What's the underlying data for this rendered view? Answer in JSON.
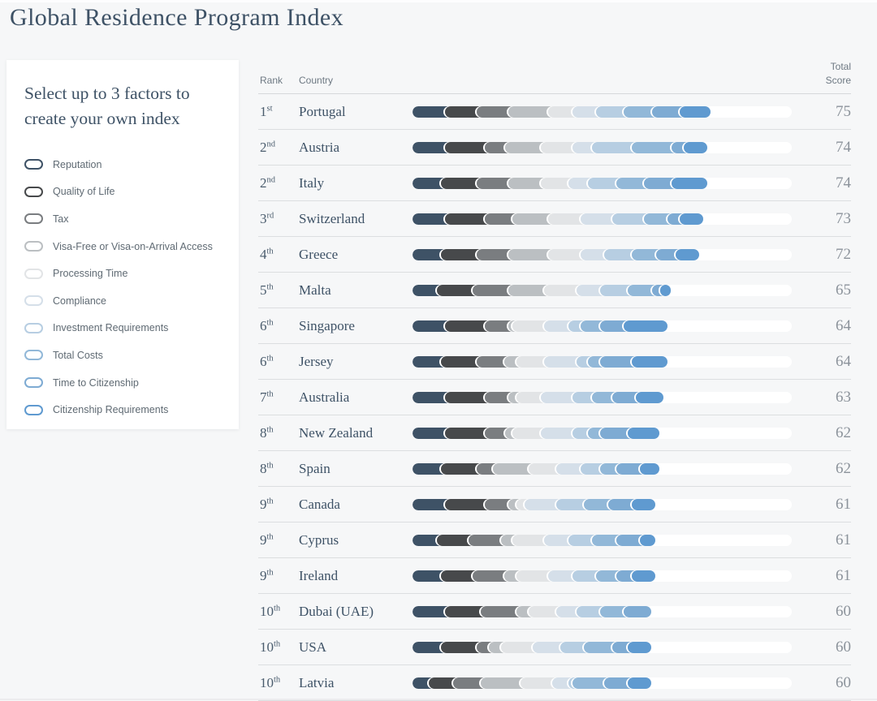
{
  "page": {
    "title": "Global Residence Program Index",
    "background": "#f6f7f8"
  },
  "sidebar": {
    "heading": "Select up to 3 factors to create your own index",
    "factors": [
      {
        "label": "Reputation",
        "color": "#3E5266"
      },
      {
        "label": "Quality of Life",
        "color": "#47494B"
      },
      {
        "label": "Tax",
        "color": "#7A7D80"
      },
      {
        "label": "Visa-Free or Visa-on-Arrival Access",
        "color": "#BBBFC2"
      },
      {
        "label": "Processing Time",
        "color": "#E2E4E6"
      },
      {
        "label": "Compliance",
        "color": "#D5DFE9"
      },
      {
        "label": "Investment Requirements",
        "color": "#B7CEE2"
      },
      {
        "label": "Total Costs",
        "color": "#92B8D8"
      },
      {
        "label": "Time to Citizenship",
        "color": "#7EABD3"
      },
      {
        "label": "Citizenship Requirements",
        "color": "#5F9AD0"
      }
    ]
  },
  "table_headers": {
    "rank": "Rank",
    "country": "Country",
    "score": "Total Score"
  },
  "chart_data": {
    "type": "bar",
    "stacked": true,
    "orientation": "horizontal",
    "title": "Global Residence Program Index",
    "max_score": 100,
    "track_color": "#ffffff",
    "factors": [
      "Reputation",
      "Quality of Life",
      "Tax",
      "Visa-Free or Visa-on-Arrival Access",
      "Processing Time",
      "Compliance",
      "Investment Requirements",
      "Total Costs",
      "Time to Citizenship",
      "Citizenship Requirements"
    ],
    "colors": [
      "#3E5266",
      "#47494B",
      "#7A7D80",
      "#BBBFC2",
      "#E2E4E6",
      "#D5DFE9",
      "#B7CEE2",
      "#92B8D8",
      "#7EABD3",
      "#5F9AD0"
    ],
    "rows": [
      {
        "rank": "1",
        "suffix": "st",
        "country": "Portugal",
        "score": 75,
        "segments": [
          10,
          8,
          8,
          10,
          6,
          6,
          7,
          7,
          7,
          6
        ]
      },
      {
        "rank": "2",
        "suffix": "nd",
        "country": "Austria",
        "score": 74,
        "segments": [
          10,
          10,
          5,
          9,
          8,
          5,
          10,
          10,
          3,
          4
        ]
      },
      {
        "rank": "2",
        "suffix": "nd",
        "country": "Italy",
        "score": 74,
        "segments": [
          9,
          9,
          8,
          8,
          7,
          5,
          7,
          7,
          7,
          7
        ]
      },
      {
        "rank": "3",
        "suffix": "rd",
        "country": "Switzerland",
        "score": 73,
        "segments": [
          10,
          10,
          7,
          9,
          8,
          8,
          8,
          6,
          3,
          4
        ]
      },
      {
        "rank": "4",
        "suffix": "th",
        "country": "Greece",
        "score": 72,
        "segments": [
          9,
          9,
          8,
          10,
          8,
          6,
          7,
          6,
          5,
          4
        ]
      },
      {
        "rank": "5",
        "suffix": "th",
        "country": "Malta",
        "score": 65,
        "segments": [
          8,
          9,
          9,
          9,
          8,
          6,
          7,
          6,
          2,
          1
        ]
      },
      {
        "rank": "6",
        "suffix": "th",
        "country": "Singapore",
        "score": 64,
        "segments": [
          10,
          10,
          6,
          1,
          8,
          6,
          3,
          5,
          6,
          9
        ]
      },
      {
        "rank": "6",
        "suffix": "th",
        "country": "Jersey",
        "score": 64,
        "segments": [
          9,
          9,
          7,
          3,
          7,
          8,
          3,
          3,
          8,
          7
        ]
      },
      {
        "rank": "7",
        "suffix": "th",
        "country": "Australia",
        "score": 63,
        "segments": [
          10,
          10,
          6,
          2,
          6,
          8,
          5,
          5,
          6,
          5
        ]
      },
      {
        "rank": "8",
        "suffix": "th",
        "country": "New Zealand",
        "score": 62,
        "segments": [
          10,
          10,
          5,
          2,
          7,
          8,
          4,
          3,
          7,
          6
        ]
      },
      {
        "rank": "8",
        "suffix": "th",
        "country": "Spain",
        "score": 62,
        "segments": [
          9,
          9,
          4,
          9,
          7,
          6,
          5,
          4,
          6,
          3
        ]
      },
      {
        "rank": "9",
        "suffix": "th",
        "country": "Canada",
        "score": 61,
        "segments": [
          10,
          10,
          6,
          2,
          2,
          8,
          7,
          6,
          6,
          4
        ]
      },
      {
        "rank": "9",
        "suffix": "th",
        "country": "Cyprus",
        "score": 61,
        "segments": [
          8,
          8,
          8,
          3,
          8,
          6,
          6,
          6,
          6,
          2
        ]
      },
      {
        "rank": "9",
        "suffix": "th",
        "country": "Ireland",
        "score": 61,
        "segments": [
          9,
          8,
          8,
          3,
          8,
          6,
          6,
          5,
          4,
          4
        ]
      },
      {
        "rank": "10",
        "suffix": "th",
        "country": "Dubai (UAE)",
        "score": 60,
        "segments": [
          10,
          9,
          9,
          3,
          7,
          5,
          6,
          6,
          5,
          0
        ]
      },
      {
        "rank": "10",
        "suffix": "th",
        "country": "USA",
        "score": 60,
        "segments": [
          9,
          9,
          3,
          3,
          8,
          7,
          6,
          7,
          4,
          4
        ]
      },
      {
        "rank": "10",
        "suffix": "th",
        "country": "Latvia",
        "score": 60,
        "segments": [
          6,
          6,
          7,
          10,
          8,
          4,
          1,
          8,
          6,
          4
        ]
      }
    ]
  }
}
